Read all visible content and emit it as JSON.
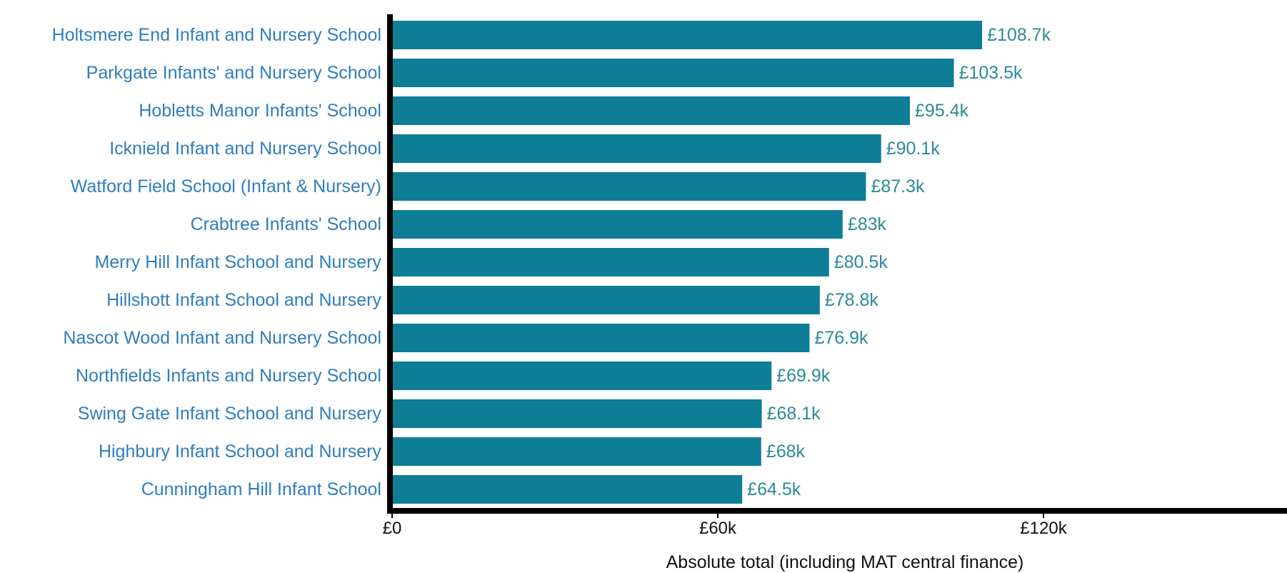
{
  "chart_data": {
    "type": "bar",
    "orientation": "horizontal",
    "categories": [
      "Holtsmere End Infant and Nursery School",
      "Parkgate Infants' and Nursery School",
      "Hobletts Manor Infants' School",
      "Icknield Infant and Nursery School",
      "Watford Field School (Infant & Nursery)",
      "Crabtree Infants' School",
      "Merry Hill Infant School and Nursery",
      "Hillshott Infant School and Nursery",
      "Nascot Wood Infant and Nursery School",
      "Northfields Infants and Nursery School",
      "Swing Gate Infant School and Nursery",
      "Highbury Infant School and Nursery",
      "Cunningham Hill Infant School"
    ],
    "values": [
      108700,
      103500,
      95400,
      90100,
      87300,
      83000,
      80500,
      78800,
      76900,
      69900,
      68100,
      68000,
      64500
    ],
    "data_labels": [
      "£108.7k",
      "£103.5k",
      "£95.4k",
      "£90.1k",
      "£87.3k",
      "£83k",
      "£80.5k",
      "£78.8k",
      "£76.9k",
      "£69.9k",
      "£68.1k",
      "£68k",
      "£64.5k"
    ],
    "title": "",
    "xlabel": "Absolute total (including MAT central finance)",
    "ylabel": "",
    "xlim": [
      0,
      140000
    ],
    "xticks": [
      0,
      60000,
      120000
    ],
    "xtick_labels": [
      "£0",
      "£60k",
      "£120k"
    ],
    "grid": false,
    "legend": "none",
    "colors": {
      "bar": "#0e7d96",
      "category_label": "#2f7dbd",
      "data_label": "#2b8b96",
      "axis": "#000000",
      "text": "#111111"
    }
  }
}
